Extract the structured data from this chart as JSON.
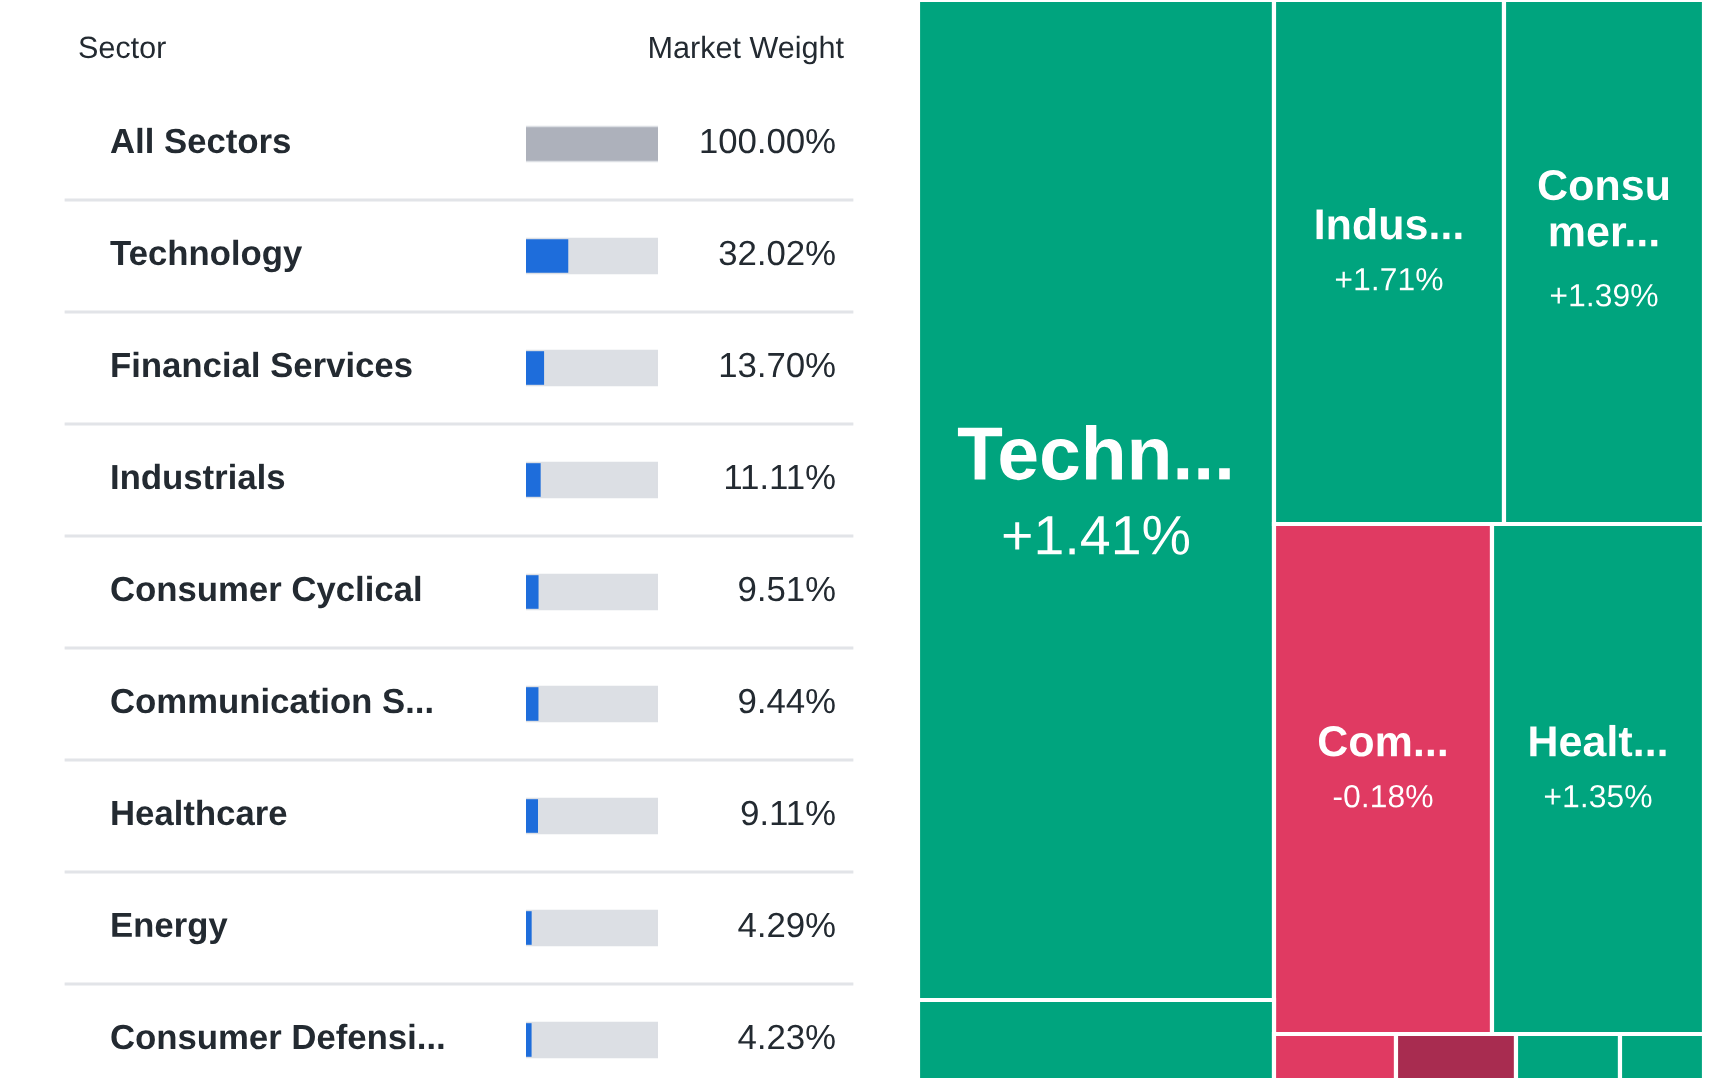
{
  "chart_data": [
    {
      "type": "bar",
      "orientation": "horizontal",
      "ylabel": "Sector",
      "xlabel": "Market Weight",
      "categories": [
        "All Sectors",
        "Technology",
        "Financial Services",
        "Industrials",
        "Consumer Cyclical",
        "Communication S...",
        "Healthcare",
        "Energy",
        "Consumer Defensi..."
      ],
      "values": [
        100.0,
        32.02,
        13.7,
        11.11,
        9.51,
        9.44,
        9.11,
        4.29,
        4.23
      ],
      "value_labels": [
        "100.00%",
        "32.02%",
        "13.70%",
        "11.11%",
        "9.51%",
        "9.44%",
        "9.11%",
        "4.29%",
        "4.23%"
      ],
      "colors": [
        "#adb1bb",
        "#1e6ddb",
        "#1e6ddb",
        "#1e6ddb",
        "#1e6ddb",
        "#1e6ddb",
        "#1e6ddb",
        "#1e6ddb",
        "#1e6ddb"
      ],
      "xlim": [
        0,
        100
      ],
      "grid": false,
      "legend": false
    },
    {
      "type": "other",
      "categories": [
        "Techn...",
        "Indus...",
        "Consu mer...",
        "Com...",
        "Healt...",
        null,
        null,
        null,
        null,
        null
      ],
      "values": [
        1.41,
        1.71,
        1.39,
        -0.18,
        1.35,
        null,
        null,
        null,
        null,
        null
      ],
      "value_labels": [
        "+1.41%",
        "+1.71%",
        "+1.39%",
        "-0.18%",
        "+1.35%",
        null,
        null,
        null,
        null,
        null
      ],
      "colors": [
        "#00a47e",
        "#00a47e",
        "#00a47e",
        "#e03a62",
        "#00a47e",
        "#00a47e",
        "#e03a62",
        "#a82c50",
        "#00a47e",
        "#00a47e"
      ]
    }
  ]
}
